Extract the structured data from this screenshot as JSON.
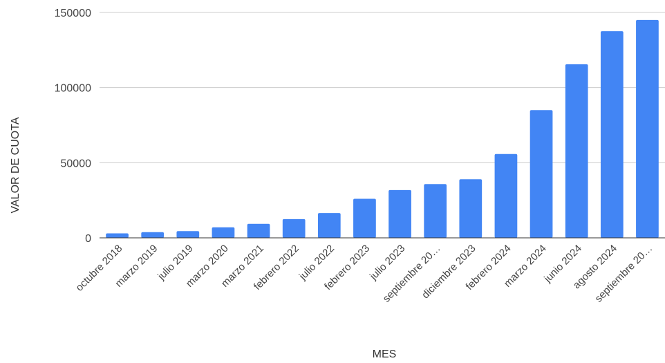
{
  "chart_data": {
    "type": "bar",
    "title": "",
    "xlabel": "MES",
    "ylabel": "VALOR DE CUOTA",
    "ylim": [
      0,
      150000
    ],
    "yticks": [
      0,
      50000,
      100000,
      150000
    ],
    "ytick_labels": [
      "0",
      "50000",
      "100000",
      "150000"
    ],
    "grid": true,
    "legend": "none",
    "bar_color": "#4285f4",
    "categories": [
      "octubre 2018",
      "marzo 2019",
      "julio 2019",
      "marzo 2020",
      "marzo 2021",
      "febrero 2022",
      "julio 2022",
      "febrero 2023",
      "julio 2023",
      "septiembre 20…",
      "diciembre 2023",
      "febrero 2024",
      "marzo 2024",
      "junio 2024",
      "agosto 2024",
      "septiembre 20…"
    ],
    "values": [
      3000,
      3800,
      4500,
      7000,
      9300,
      12500,
      16500,
      26000,
      31800,
      35800,
      39000,
      55800,
      85000,
      115500,
      137500,
      145000
    ]
  }
}
